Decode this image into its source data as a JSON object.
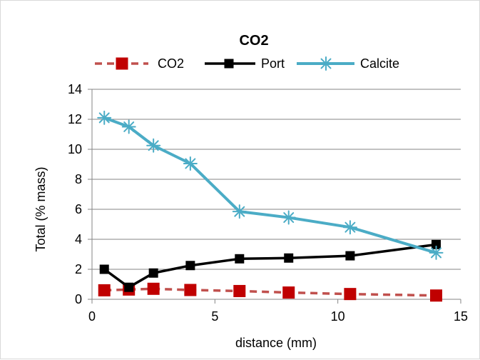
{
  "chart_data": {
    "type": "line",
    "title": "CO2",
    "xlabel": "distance (mm)",
    "ylabel": "Total (% mass)",
    "xlim": [
      0,
      15
    ],
    "ylim": [
      0,
      14
    ],
    "x_ticks": [
      0,
      5,
      10,
      15
    ],
    "y_ticks": [
      0,
      2,
      4,
      6,
      8,
      10,
      12,
      14
    ],
    "grid": "horizontal",
    "legend_position": "top",
    "series": [
      {
        "name": "CO2",
        "color": "#c0504d",
        "marker_color": "#c00000",
        "line_style": "dashed",
        "marker": "square",
        "x": [
          0.5,
          1.5,
          2.5,
          4,
          6,
          8,
          10.5,
          14
        ],
        "y": [
          0.6,
          0.65,
          0.7,
          0.62,
          0.55,
          0.45,
          0.35,
          0.25
        ]
      },
      {
        "name": "Port",
        "color": "#000000",
        "marker_color": "#000000",
        "line_style": "solid",
        "marker": "square",
        "x": [
          0.5,
          1.5,
          2.5,
          4,
          6,
          8,
          10.5,
          14
        ],
        "y": [
          2.0,
          0.8,
          1.75,
          2.25,
          2.7,
          2.75,
          2.9,
          3.65
        ]
      },
      {
        "name": "Calcite",
        "color": "#4bacc6",
        "marker_color": "#4bacc6",
        "line_style": "solid",
        "marker": "asterisk",
        "x": [
          0.5,
          1.5,
          2.5,
          4,
          6,
          8,
          10.5,
          14
        ],
        "y": [
          12.1,
          11.5,
          10.25,
          9.05,
          5.85,
          5.45,
          4.8,
          3.1
        ]
      }
    ]
  }
}
